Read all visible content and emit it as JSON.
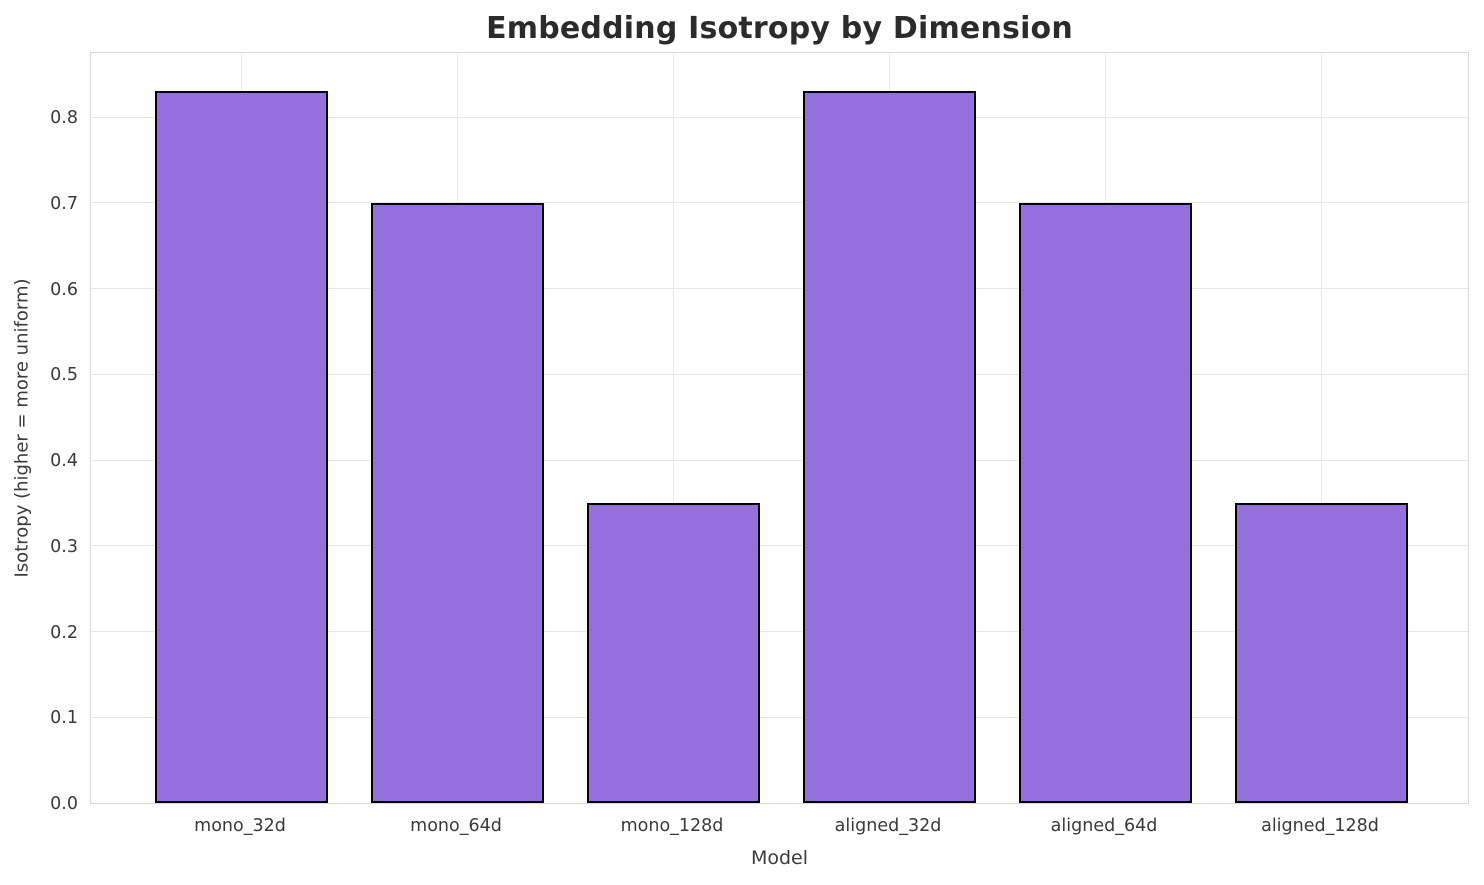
{
  "chart_data": {
    "type": "bar",
    "title": "Embedding Isotropy by Dimension",
    "xlabel": "Model",
    "ylabel": "Isotropy (higher = more uniform)",
    "categories": [
      "mono_32d",
      "mono_64d",
      "mono_128d",
      "aligned_32d",
      "aligned_64d",
      "aligned_128d"
    ],
    "values": [
      0.83,
      0.7,
      0.35,
      0.83,
      0.7,
      0.35
    ],
    "ylim": [
      0,
      0.877
    ],
    "yticks": [
      0.0,
      0.1,
      0.2,
      0.3,
      0.4,
      0.5,
      0.6,
      0.7,
      0.8
    ],
    "ytick_labels": [
      "0.0",
      "0.1",
      "0.2",
      "0.3",
      "0.4",
      "0.5",
      "0.6",
      "0.7",
      "0.8"
    ],
    "grid": true,
    "legend": "none",
    "colors": {
      "bar_fill": "#9370DB",
      "bar_edge": "#000000",
      "grid": "#e8e8e8",
      "spine": "#d9d9d9",
      "text": "#3b3b3b",
      "title": "#2b2b2b"
    }
  }
}
